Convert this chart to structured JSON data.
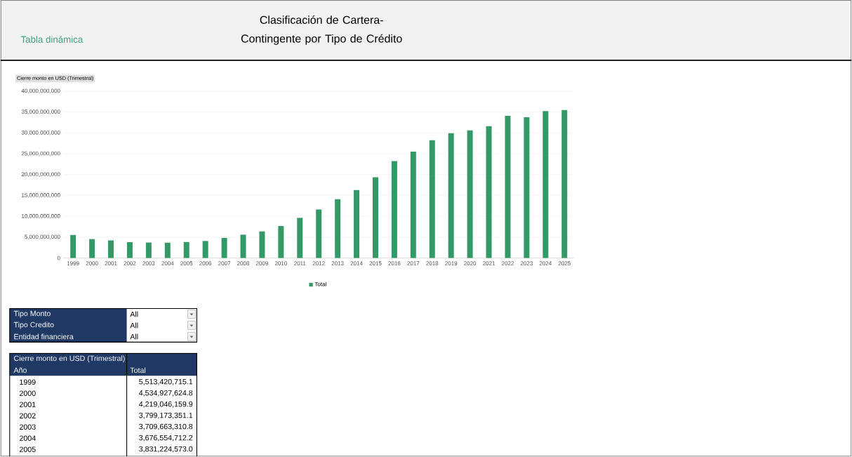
{
  "chart_data": {
    "type": "bar",
    "title": "Clasificación de Cartera-Contingente por Tipo de Crédito",
    "ylabel": "Cierre monto en USD (Trimestral)",
    "annotations": [
      "Tabla dinámica",
      "Tipo Monto",
      "All",
      "Tipo Credito",
      "All",
      "Entidad financiera",
      "All",
      "Año",
      "5,513,420,715.1",
      "4,534,927,624.8",
      "4,219,046,159.9",
      "3,799,173,351.1",
      "3,709,663,310.8",
      "3,676,554,712.2",
      "3,831,224,573.0"
    ],
    "categories": [
      "1999",
      "2000",
      "2001",
      "2002",
      "2003",
      "2004",
      "2005",
      "2006",
      "2007",
      "2008",
      "2009",
      "2010",
      "2011",
      "2012",
      "2013",
      "2014",
      "2015",
      "2016",
      "2017",
      "2018",
      "2019",
      "2020",
      "2021",
      "2022",
      "2023",
      "2024",
      "2025"
    ],
    "series": [
      {
        "name": "Total",
        "color": "#339966",
        "values": [
          5513420715.1,
          4534927624.8,
          4219046159.9,
          3799173351.1,
          3709663310.8,
          3676554712.2,
          3831224573.0,
          4080000000,
          4810000000,
          5590000000,
          6380000000,
          7660000000,
          9620000000,
          11640000000,
          14100000000,
          16280000000,
          19360000000,
          23220000000,
          25510000000,
          28250000000,
          29930000000,
          30600000000,
          31610000000,
          34070000000,
          33730000000,
          35240000000,
          35470000000
        ]
      }
    ],
    "ylim": [
      0,
      40000000000
    ],
    "yticks": [
      0,
      {
        "value": 5000000000,
        "label": "5,000,000,000"
      },
      {
        "value": 10000000000,
        "label": "10,000,000,000"
      },
      {
        "value": 15000000000,
        "label": "15,000,000,000"
      },
      {
        "value": 20000000000,
        "label": "20,000,000,000"
      },
      {
        "value": 25000000000,
        "label": "25,000,000,000"
      },
      {
        "value": 30000000000,
        "label": "30,000,000,000"
      },
      {
        "value": 35000000000,
        "label": "35,000,000,000"
      },
      {
        "value": 40000000000,
        "label": "40,000,000,000"
      }
    ],
    "grid": "y",
    "legend": "bottom"
  }
}
